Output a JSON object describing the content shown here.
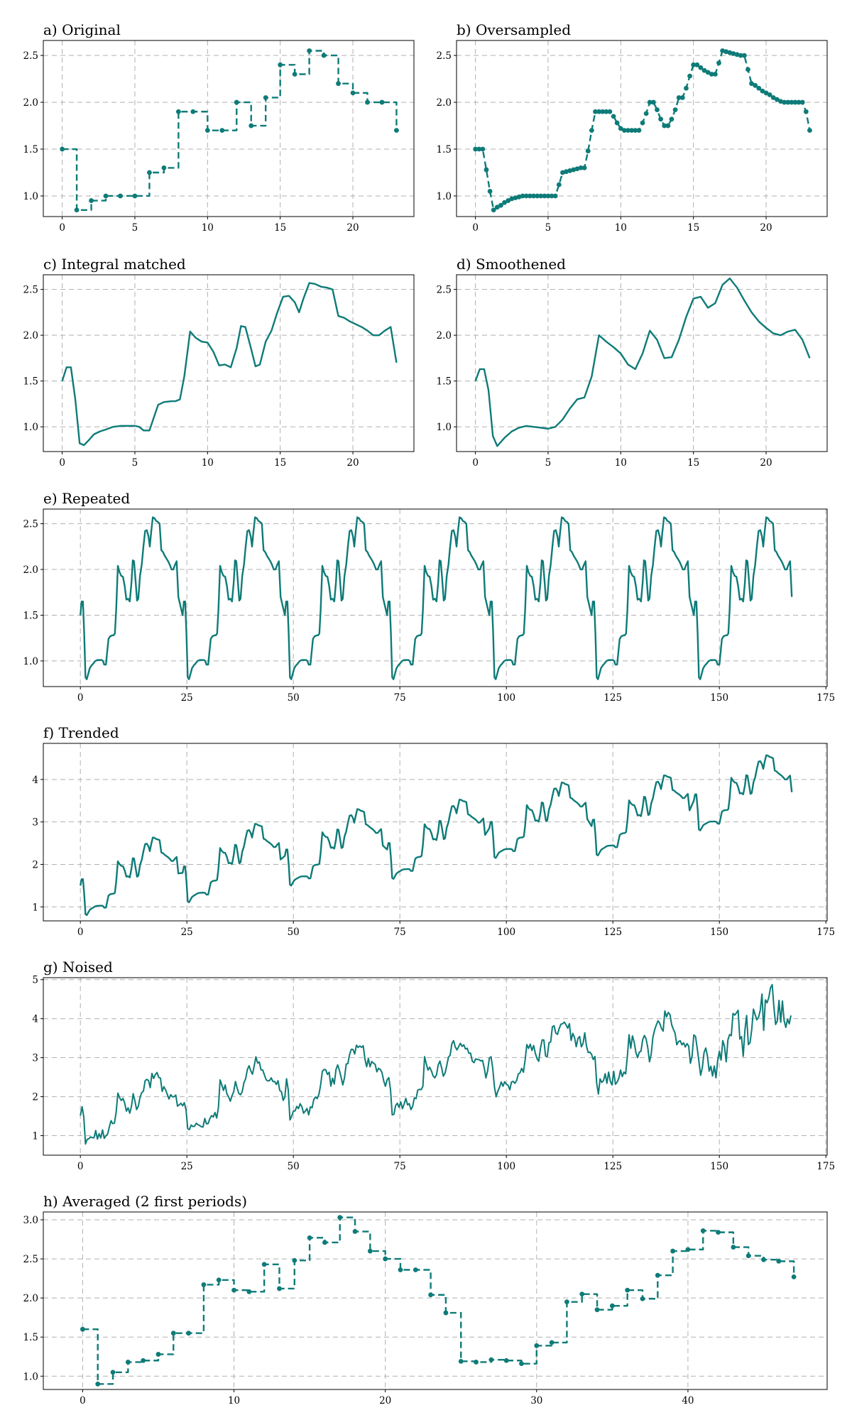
{
  "colors": {
    "series": "#0e7b78",
    "grid": "#b0b0b0",
    "axis": "#000000"
  },
  "chart_data": [
    {
      "type": "line",
      "title": "a) Original",
      "style": "step-markers",
      "xlim": [
        -1.3,
        24.2
      ],
      "ylim": [
        0.78,
        2.66
      ],
      "xticks": [
        0,
        5,
        10,
        15,
        20
      ],
      "yticks": [
        1.0,
        1.5,
        2.0,
        2.5
      ],
      "x": [
        0,
        1,
        2,
        3,
        4,
        5,
        6,
        7,
        8,
        9,
        10,
        11,
        12,
        13,
        14,
        15,
        16,
        17,
        18,
        19,
        20,
        21,
        22,
        23
      ],
      "values": [
        1.5,
        0.85,
        0.95,
        1.0,
        1.0,
        1.0,
        1.25,
        1.3,
        1.9,
        1.9,
        1.7,
        1.7,
        2.0,
        1.75,
        2.05,
        2.4,
        2.3,
        2.55,
        2.5,
        2.2,
        2.1,
        2.0,
        2.0,
        1.7
      ]
    },
    {
      "type": "line",
      "title": "b) Oversampled",
      "style": "dense-markers",
      "xlim": [
        -1.3,
        24.2
      ],
      "ylim": [
        0.78,
        2.66
      ],
      "xticks": [
        0,
        5,
        10,
        15,
        20
      ],
      "yticks": [
        1.0,
        1.5,
        2.0,
        2.5
      ],
      "x": [
        0,
        0.25,
        0.5,
        0.75,
        1,
        1.25,
        1.5,
        1.75,
        2,
        2.25,
        2.5,
        2.75,
        3,
        3.25,
        3.5,
        3.75,
        4,
        4.25,
        4.5,
        4.75,
        5,
        5.25,
        5.5,
        5.75,
        6,
        6.25,
        6.5,
        6.75,
        7,
        7.25,
        7.5,
        7.75,
        8,
        8.25,
        8.5,
        8.75,
        9,
        9.25,
        9.5,
        9.75,
        10,
        10.25,
        10.5,
        10.75,
        11,
        11.25,
        11.5,
        11.75,
        12,
        12.25,
        12.5,
        12.75,
        13,
        13.25,
        13.5,
        13.75,
        14,
        14.25,
        14.5,
        14.75,
        15,
        15.25,
        15.5,
        15.75,
        16,
        16.25,
        16.5,
        16.75,
        17,
        17.25,
        17.5,
        17.75,
        18,
        18.25,
        18.5,
        18.75,
        19,
        19.25,
        19.5,
        19.75,
        20,
        20.25,
        20.5,
        20.75,
        21,
        21.25,
        21.5,
        21.75,
        22,
        22.25,
        22.5,
        22.75,
        23
      ],
      "values": [
        1.5,
        1.5,
        1.5,
        1.28,
        1.05,
        0.85,
        0.88,
        0.9,
        0.93,
        0.95,
        0.97,
        0.98,
        0.99,
        1.0,
        1.0,
        1.0,
        1.0,
        1.0,
        1.0,
        1.0,
        1.0,
        1.0,
        1.0,
        1.12,
        1.25,
        1.26,
        1.27,
        1.28,
        1.29,
        1.3,
        1.3,
        1.48,
        1.7,
        1.9,
        1.9,
        1.9,
        1.9,
        1.9,
        1.85,
        1.78,
        1.72,
        1.7,
        1.7,
        1.7,
        1.7,
        1.7,
        1.78,
        1.88,
        2.0,
        2.0,
        1.92,
        1.82,
        1.75,
        1.75,
        1.82,
        1.92,
        2.05,
        2.05,
        2.15,
        2.28,
        2.4,
        2.4,
        2.37,
        2.34,
        2.32,
        2.3,
        2.3,
        2.42,
        2.55,
        2.54,
        2.53,
        2.52,
        2.51,
        2.5,
        2.5,
        2.35,
        2.2,
        2.18,
        2.15,
        2.12,
        2.1,
        2.08,
        2.05,
        2.03,
        2.01,
        2.0,
        2.0,
        2.0,
        2.0,
        2.0,
        2.0,
        1.9,
        1.7
      ]
    },
    {
      "type": "line",
      "title": "c) Integral matched",
      "style": "line",
      "xlim": [
        -1.3,
        24.2
      ],
      "ylim": [
        0.73,
        2.66
      ],
      "xticks": [
        0,
        5,
        10,
        15,
        20
      ],
      "yticks": [
        1.0,
        1.5,
        2.0,
        2.5
      ],
      "x": [
        0,
        0.3,
        0.6,
        0.9,
        1.2,
        1.5,
        1.8,
        2.2,
        2.6,
        3.0,
        3.5,
        4.0,
        4.5,
        5.0,
        5.3,
        5.6,
        6.0,
        6.3,
        6.6,
        7.0,
        7.5,
        7.8,
        8.1,
        8.4,
        8.8,
        9.2,
        9.6,
        10.0,
        10.4,
        10.8,
        11.2,
        11.6,
        12.0,
        12.3,
        12.6,
        13.0,
        13.3,
        13.6,
        14.0,
        14.4,
        14.8,
        15.2,
        15.6,
        16.0,
        16.3,
        16.6,
        17.0,
        17.4,
        17.8,
        18.2,
        18.6,
        19.0,
        19.4,
        19.8,
        20.2,
        20.6,
        21.0,
        21.4,
        21.8,
        22.2,
        22.6,
        23.0
      ],
      "values": [
        1.5,
        1.65,
        1.65,
        1.3,
        0.82,
        0.8,
        0.85,
        0.92,
        0.95,
        0.97,
        1.0,
        1.01,
        1.01,
        1.01,
        1.0,
        0.96,
        0.96,
        1.1,
        1.24,
        1.27,
        1.28,
        1.28,
        1.3,
        1.55,
        2.04,
        1.97,
        1.93,
        1.92,
        1.82,
        1.67,
        1.68,
        1.65,
        1.86,
        2.1,
        2.09,
        1.85,
        1.66,
        1.68,
        1.93,
        2.05,
        2.25,
        2.42,
        2.43,
        2.36,
        2.25,
        2.4,
        2.57,
        2.56,
        2.53,
        2.52,
        2.5,
        2.21,
        2.19,
        2.15,
        2.12,
        2.09,
        2.05,
        2.0,
        2.0,
        2.05,
        2.09,
        1.7
      ]
    },
    {
      "type": "line",
      "title": "d) Smoothened",
      "style": "line",
      "xlim": [
        -1.3,
        24.2
      ],
      "ylim": [
        0.73,
        2.66
      ],
      "xticks": [
        0,
        5,
        10,
        15,
        20
      ],
      "yticks": [
        1.0,
        1.5,
        2.0,
        2.5
      ],
      "x": [
        0,
        0.3,
        0.6,
        0.9,
        1.2,
        1.5,
        2.0,
        2.5,
        3.0,
        3.5,
        4.0,
        4.5,
        5.0,
        5.5,
        6.0,
        6.5,
        7.0,
        7.5,
        8.0,
        8.5,
        9.0,
        9.5,
        10.0,
        10.5,
        11.0,
        11.5,
        12.0,
        12.5,
        13.0,
        13.5,
        14.0,
        14.5,
        15.0,
        15.5,
        16.0,
        16.5,
        17.0,
        17.5,
        18.0,
        18.5,
        19.0,
        19.5,
        20.0,
        20.5,
        21.0,
        21.5,
        22.0,
        22.5,
        23.0
      ],
      "values": [
        1.5,
        1.63,
        1.63,
        1.4,
        0.9,
        0.79,
        0.88,
        0.95,
        0.99,
        1.01,
        1.0,
        0.99,
        0.98,
        1.0,
        1.08,
        1.2,
        1.3,
        1.32,
        1.55,
        2.0,
        1.93,
        1.87,
        1.8,
        1.68,
        1.63,
        1.8,
        2.05,
        1.95,
        1.75,
        1.76,
        1.95,
        2.2,
        2.4,
        2.42,
        2.3,
        2.35,
        2.55,
        2.62,
        2.52,
        2.38,
        2.25,
        2.15,
        2.08,
        2.02,
        2.0,
        2.04,
        2.06,
        1.95,
        1.75
      ]
    },
    {
      "type": "line",
      "title": "e) Repeated",
      "style": "line",
      "xlim": [
        -8.7,
        175.3
      ],
      "ylim": [
        0.72,
        2.66
      ],
      "xticks": [
        0,
        25,
        50,
        75,
        100,
        125,
        150,
        175
      ],
      "yticks": [
        1.0,
        1.5,
        2.0,
        2.5
      ],
      "x_note": "period 24, periods 7, plus x=0 start",
      "values_period": [
        1.5,
        1.65,
        1.65,
        1.3,
        0.82,
        0.8,
        0.85,
        0.92,
        0.95,
        0.97,
        1.0,
        1.01,
        1.01,
        1.01,
        1.0,
        0.96,
        0.96,
        1.1,
        1.24,
        1.27,
        1.28,
        1.28,
        1.3,
        1.55,
        2.04,
        1.97,
        1.93,
        1.92,
        1.82,
        1.67,
        1.68,
        1.65,
        1.86,
        2.1,
        2.09,
        1.85,
        1.66,
        1.68,
        1.93,
        2.05,
        2.25,
        2.42,
        2.43,
        2.36,
        2.25,
        2.4,
        2.57,
        2.56,
        2.53,
        2.52,
        2.5,
        2.21,
        2.19,
        2.15,
        2.12,
        2.09,
        2.05,
        2.0,
        2.0,
        2.05,
        2.09,
        1.7
      ]
    },
    {
      "type": "line",
      "title": "f) Trended",
      "style": "line",
      "xlim": [
        -8.7,
        175.3
      ],
      "ylim": [
        0.67,
        4.85
      ],
      "xticks": [
        0,
        25,
        50,
        75,
        100,
        125,
        150,
        175
      ],
      "yticks": [
        1,
        2,
        3,
        4
      ],
      "trend_per_period": [
        0.0,
        0.3,
        0.7,
        0.85,
        1.35,
        1.4,
        2.0
      ],
      "trend_note": "repeated profile plus period offset"
    },
    {
      "type": "line",
      "title": "g) Noised",
      "style": "line",
      "xlim": [
        -8.7,
        175.3
      ],
      "ylim": [
        0.5,
        5.05
      ],
      "xticks": [
        0,
        25,
        50,
        75,
        100,
        125,
        150,
        175
      ],
      "yticks": [
        1,
        2,
        3,
        4,
        5
      ],
      "trend_per_period": [
        0.0,
        0.3,
        0.7,
        0.85,
        1.35,
        1.4,
        2.0
      ],
      "noise_amplitude": [
        0.12,
        0.12,
        0.12,
        0.12,
        0.15,
        0.2,
        0.45
      ]
    },
    {
      "type": "line",
      "title": "h) Averaged (2 first periods)",
      "style": "step-markers",
      "xlim": [
        -2.6,
        49.2
      ],
      "ylim": [
        0.83,
        3.1
      ],
      "xticks": [
        0,
        10,
        20,
        30,
        40
      ],
      "yticks": [
        1.0,
        1.5,
        2.0,
        2.5,
        3.0
      ],
      "x": [
        0,
        1,
        2,
        3,
        4,
        5,
        6,
        7,
        8,
        9,
        10,
        11,
        12,
        13,
        14,
        15,
        16,
        17,
        18,
        19,
        20,
        21,
        22,
        23,
        24,
        25,
        26,
        27,
        28,
        29,
        30,
        31,
        32,
        33,
        34,
        35,
        36,
        37,
        38,
        39,
        40,
        41,
        42,
        43,
        44,
        45,
        46,
        47
      ],
      "values": [
        1.6,
        0.9,
        1.05,
        1.18,
        1.2,
        1.28,
        1.55,
        1.55,
        2.17,
        2.23,
        2.1,
        2.08,
        2.43,
        2.12,
        2.48,
        2.77,
        2.71,
        3.03,
        2.85,
        2.6,
        2.5,
        2.36,
        2.36,
        2.04,
        1.81,
        1.19,
        1.18,
        1.21,
        1.2,
        1.16,
        1.39,
        1.43,
        1.95,
        2.05,
        1.85,
        1.9,
        2.1,
        1.99,
        2.29,
        2.6,
        2.62,
        2.86,
        2.84,
        2.65,
        2.54,
        2.49,
        2.47,
        2.27
      ]
    }
  ]
}
